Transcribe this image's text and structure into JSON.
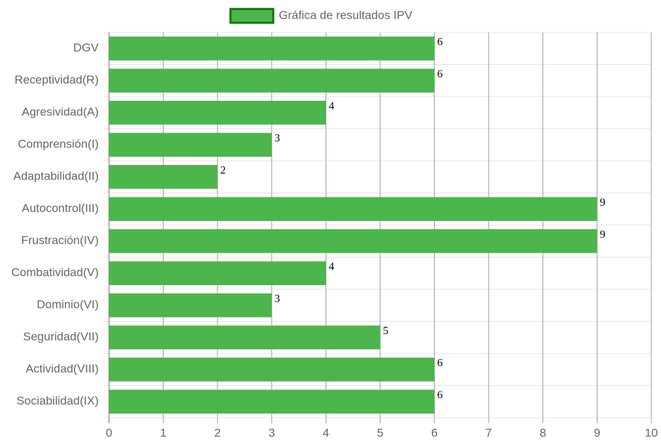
{
  "chart_data": {
    "type": "bar",
    "orientation": "horizontal",
    "categories": [
      "DGV",
      "Receptividad(R)",
      "Agresividad(A)",
      "Comprensión(I)",
      "Adaptabilidad(II)",
      "Autocontrol(III)",
      "Frustración(IV)",
      "Combatividad(V)",
      "Dominio(VI)",
      "Seguridad(VII)",
      "Actividad(VIII)",
      "Sociabilidad(IX)"
    ],
    "series": [
      {
        "name": "Gráfica de resultados IPV",
        "color": "#4cb54c",
        "values": [
          6,
          6,
          4,
          3,
          2,
          9,
          9,
          4,
          3,
          5,
          6,
          6
        ]
      }
    ],
    "xlim": [
      0,
      10
    ],
    "xticks": [
      0,
      1,
      2,
      3,
      4,
      5,
      6,
      7,
      8,
      9,
      10
    ],
    "grid": true,
    "legend": "top"
  }
}
